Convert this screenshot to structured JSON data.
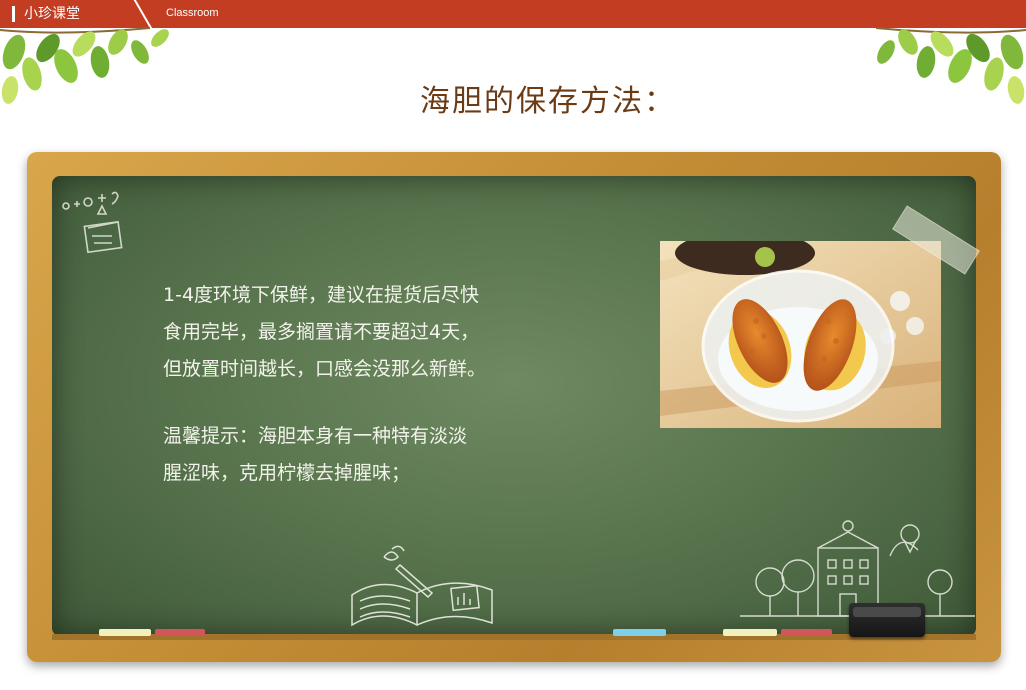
{
  "header": {
    "brand": "小珍课堂",
    "subtitle": "Classroom"
  },
  "title": "海胆的保存方法：",
  "board": {
    "paragraph1": [
      "1-4度环境下保鲜，建议在提货后尽快",
      "食用完毕，最多搁置请不要超过4天，",
      "但放置时间越长，口感会没那么新鲜。"
    ],
    "paragraph2": [
      "温馨提示：海胆本身有一种特有淡淡",
      "腥涩味，克用柠檬去掉腥味；"
    ]
  },
  "colors": {
    "header_red": "#c33d22",
    "title_brown": "#6b3b16",
    "board_green": "#5a764f",
    "chalk_text": "#f2f3ea",
    "frame_wood": "#c58f37"
  },
  "icons": {
    "left_leaves": "leaves-icon",
    "right_leaves": "leaves-icon",
    "math_doodle": "math-doodle-icon",
    "book_doodle": "open-book-doodle-icon",
    "school_doodle": "school-doodle-icon",
    "eraser": "eraser-icon"
  }
}
